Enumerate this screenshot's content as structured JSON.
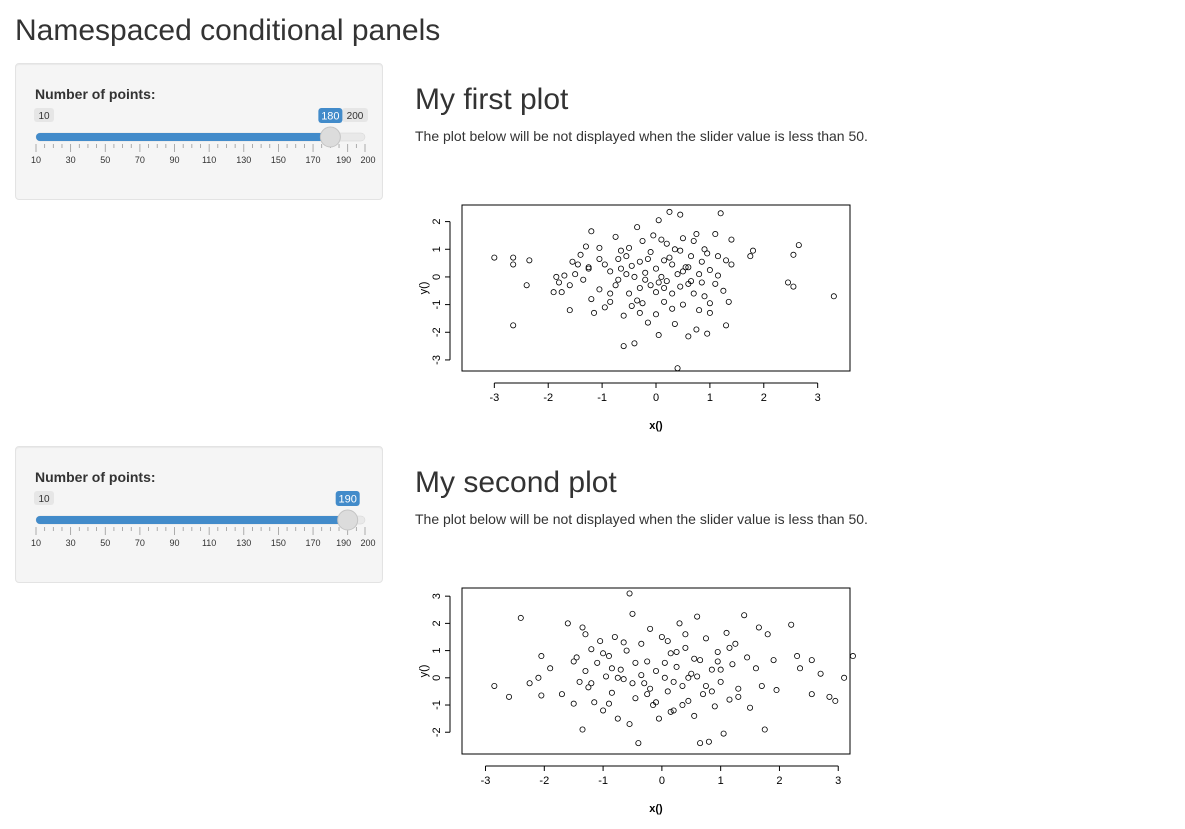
{
  "page": {
    "title": "Namespaced conditional panels"
  },
  "panels": [
    {
      "slider": {
        "label": "Number of points:",
        "min": 10,
        "max": 200,
        "value": 180,
        "min_label": "10",
        "max_label": "200",
        "value_label": "180"
      },
      "main": {
        "title": "My first plot",
        "description": "The plot below will be not displayed when the slider value is less than 50."
      }
    },
    {
      "slider": {
        "label": "Number of points:",
        "min": 10,
        "max": 200,
        "value": 190,
        "min_label": "10",
        "max_label": "200",
        "value_label": "190"
      },
      "main": {
        "title": "My second plot",
        "description": "The plot below will be not displayed when the slider value is less than 50."
      }
    }
  ],
  "slider_ticks": [
    "10",
    "30",
    "50",
    "70",
    "90",
    "110",
    "130",
    "150",
    "170",
    "190",
    "200"
  ],
  "colors": {
    "accent": "#428bca",
    "badge_bg": "#e6e6e6",
    "text": "#333333",
    "well_bg": "#f5f5f5"
  },
  "chart_data": [
    {
      "type": "scatter",
      "xlabel": "x()",
      "ylabel": "y()",
      "xlim": [
        -3.6,
        3.6
      ],
      "ylim": [
        -3.4,
        2.6
      ],
      "xticks": [
        "-3",
        "-2",
        "-1",
        "0",
        "1",
        "2",
        "3"
      ],
      "yticks": [
        "-3",
        "-2",
        "-1",
        "0",
        "1",
        "2"
      ],
      "points": [
        [
          -3.0,
          0.7
        ],
        [
          -2.65,
          0.7
        ],
        [
          -2.65,
          0.45
        ],
        [
          -2.35,
          0.6
        ],
        [
          -2.4,
          -0.3
        ],
        [
          -2.65,
          -1.75
        ],
        [
          -1.9,
          -0.55
        ],
        [
          -1.85,
          0.0
        ],
        [
          -1.8,
          -0.2
        ],
        [
          -1.75,
          -0.55
        ],
        [
          -1.7,
          0.05
        ],
        [
          -1.6,
          -0.3
        ],
        [
          -1.55,
          0.55
        ],
        [
          -1.5,
          0.1
        ],
        [
          -1.4,
          0.8
        ],
        [
          -1.35,
          -0.1
        ],
        [
          -1.3,
          1.1
        ],
        [
          -1.25,
          0.35
        ],
        [
          -1.2,
          1.65
        ],
        [
          -1.2,
          -0.8
        ],
        [
          -1.15,
          -1.3
        ],
        [
          -1.05,
          1.05
        ],
        [
          -1.05,
          -0.45
        ],
        [
          -0.95,
          0.45
        ],
        [
          -0.95,
          -1.1
        ],
        [
          -0.85,
          0.2
        ],
        [
          -0.85,
          -0.9
        ],
        [
          -0.75,
          1.45
        ],
        [
          -0.7,
          0.65
        ],
        [
          -0.7,
          -0.1
        ],
        [
          -0.65,
          0.3
        ],
        [
          -0.6,
          -1.4
        ],
        [
          -0.6,
          -2.5
        ],
        [
          -0.55,
          0.75
        ],
        [
          -0.5,
          1.05
        ],
        [
          -0.5,
          -0.6
        ],
        [
          -0.45,
          0.4
        ],
        [
          -0.45,
          -1.05
        ],
        [
          -0.4,
          0.0
        ],
        [
          -0.4,
          -2.4
        ],
        [
          -0.35,
          1.8
        ],
        [
          -0.3,
          0.55
        ],
        [
          -0.3,
          -0.4
        ],
        [
          -0.25,
          1.3
        ],
        [
          -0.25,
          -0.95
        ],
        [
          -0.2,
          0.15
        ],
        [
          -0.15,
          -1.65
        ],
        [
          -0.1,
          0.9
        ],
        [
          -0.1,
          -0.3
        ],
        [
          -0.05,
          1.5
        ],
        [
          0.0,
          0.3
        ],
        [
          0.0,
          -0.55
        ],
        [
          0.0,
          -1.35
        ],
        [
          0.05,
          2.05
        ],
        [
          0.05,
          -2.1
        ],
        [
          0.1,
          0.0
        ],
        [
          0.15,
          0.6
        ],
        [
          0.15,
          -0.9
        ],
        [
          0.2,
          1.2
        ],
        [
          0.2,
          -0.15
        ],
        [
          0.25,
          2.35
        ],
        [
          0.3,
          0.45
        ],
        [
          0.3,
          -0.6
        ],
        [
          0.35,
          -1.7
        ],
        [
          0.35,
          1.0
        ],
        [
          0.4,
          0.1
        ],
        [
          0.4,
          -3.3
        ],
        [
          0.45,
          2.25
        ],
        [
          0.45,
          -0.35
        ],
        [
          0.5,
          1.4
        ],
        [
          0.5,
          -1.0
        ],
        [
          0.55,
          0.35
        ],
        [
          0.6,
          -2.15
        ],
        [
          0.6,
          -0.25
        ],
        [
          0.65,
          0.75
        ],
        [
          0.7,
          -0.6
        ],
        [
          0.7,
          1.3
        ],
        [
          0.75,
          -1.9
        ],
        [
          0.8,
          0.1
        ],
        [
          0.8,
          -1.2
        ],
        [
          0.85,
          0.55
        ],
        [
          0.9,
          -0.7
        ],
        [
          0.9,
          1.0
        ],
        [
          0.95,
          -2.05
        ],
        [
          1.0,
          0.25
        ],
        [
          1.0,
          -1.3
        ],
        [
          1.1,
          1.55
        ],
        [
          1.1,
          -0.25
        ],
        [
          1.15,
          0.75
        ],
        [
          1.2,
          2.3
        ],
        [
          1.25,
          -0.5
        ],
        [
          1.3,
          0.6
        ],
        [
          1.3,
          -1.75
        ],
        [
          1.35,
          -0.9
        ],
        [
          1.4,
          1.35
        ],
        [
          1.4,
          0.45
        ],
        [
          1.75,
          0.75
        ],
        [
          1.8,
          0.95
        ],
        [
          2.55,
          0.8
        ],
        [
          2.65,
          1.15
        ],
        [
          2.55,
          -0.35
        ],
        [
          2.45,
          -0.2
        ],
        [
          3.3,
          -0.7
        ],
        [
          -1.25,
          0.3
        ],
        [
          -0.85,
          -0.6
        ],
        [
          -0.65,
          0.95
        ],
        [
          -0.2,
          -0.1
        ],
        [
          0.25,
          0.7
        ],
        [
          0.6,
          0.35
        ],
        [
          0.85,
          -0.2
        ],
        [
          1.0,
          -0.95
        ],
        [
          -1.6,
          -1.2
        ],
        [
          -0.35,
          -0.85
        ],
        [
          0.15,
          -0.4
        ],
        [
          0.5,
          0.2
        ],
        [
          -0.55,
          0.1
        ],
        [
          0.75,
          1.55
        ],
        [
          -1.05,
          0.65
        ],
        [
          0.1,
          1.35
        ],
        [
          0.65,
          -0.15
        ],
        [
          -0.15,
          0.65
        ],
        [
          1.15,
          0.05
        ],
        [
          -0.75,
          -0.3
        ],
        [
          0.3,
          -1.15
        ],
        [
          0.95,
          0.85
        ],
        [
          -1.45,
          0.45
        ],
        [
          0.45,
          0.95
        ],
        [
          -0.3,
          -1.3
        ],
        [
          0.05,
          -0.2
        ]
      ]
    },
    {
      "type": "scatter",
      "xlabel": "x()",
      "ylabel": "y()",
      "xlim": [
        -3.4,
        3.2
      ],
      "ylim": [
        -2.8,
        3.3
      ],
      "xticks": [
        "-3",
        "-2",
        "-1",
        "0",
        "1",
        "2",
        "3"
      ],
      "yticks": [
        "-2",
        "-1",
        "0",
        "1",
        "2",
        "3"
      ],
      "points": [
        [
          -2.85,
          -0.3
        ],
        [
          -2.6,
          -0.7
        ],
        [
          -2.4,
          2.2
        ],
        [
          -2.25,
          -0.2
        ],
        [
          -2.1,
          0.0
        ],
        [
          -2.05,
          0.8
        ],
        [
          -2.05,
          -0.65
        ],
        [
          -1.9,
          0.35
        ],
        [
          -1.7,
          -0.6
        ],
        [
          -1.6,
          2.0
        ],
        [
          -1.5,
          -0.95
        ],
        [
          -1.45,
          0.75
        ],
        [
          -1.4,
          -0.15
        ],
        [
          -1.35,
          1.85
        ],
        [
          -1.35,
          -1.9
        ],
        [
          -1.3,
          0.25
        ],
        [
          -1.3,
          1.6
        ],
        [
          -1.25,
          -0.35
        ],
        [
          -1.2,
          1.05
        ],
        [
          -1.15,
          -0.9
        ],
        [
          -1.1,
          0.55
        ],
        [
          -1.05,
          1.35
        ],
        [
          -1.0,
          -1.2
        ],
        [
          -0.95,
          0.05
        ],
        [
          -0.9,
          0.8
        ],
        [
          -0.85,
          -0.55
        ],
        [
          -0.8,
          1.5
        ],
        [
          -0.75,
          -1.5
        ],
        [
          -0.7,
          0.3
        ],
        [
          -0.65,
          -0.05
        ],
        [
          -0.6,
          1.0
        ],
        [
          -0.55,
          -1.7
        ],
        [
          -0.5,
          2.35
        ],
        [
          -0.45,
          0.55
        ],
        [
          -0.45,
          -0.75
        ],
        [
          -0.4,
          -2.4
        ],
        [
          -0.35,
          1.25
        ],
        [
          -0.3,
          -0.2
        ],
        [
          -0.25,
          0.6
        ],
        [
          -0.2,
          1.8
        ],
        [
          -0.15,
          -1.0
        ],
        [
          -0.1,
          0.25
        ],
        [
          -0.05,
          -1.5
        ],
        [
          0.0,
          1.5
        ],
        [
          0.05,
          0.0
        ],
        [
          0.1,
          -0.5
        ],
        [
          0.15,
          0.9
        ],
        [
          0.2,
          -1.2
        ],
        [
          0.25,
          0.4
        ],
        [
          0.3,
          2.0
        ],
        [
          0.35,
          -0.3
        ],
        [
          0.4,
          1.1
        ],
        [
          0.45,
          -0.85
        ],
        [
          0.5,
          0.15
        ],
        [
          0.55,
          -1.4
        ],
        [
          0.6,
          2.25
        ],
        [
          0.65,
          0.65
        ],
        [
          0.7,
          -0.6
        ],
        [
          0.75,
          1.45
        ],
        [
          0.8,
          -2.35
        ],
        [
          0.85,
          0.3
        ],
        [
          0.9,
          -1.05
        ],
        [
          0.95,
          0.95
        ],
        [
          1.0,
          -0.15
        ],
        [
          1.05,
          -2.05
        ],
        [
          1.1,
          1.65
        ],
        [
          1.15,
          -0.8
        ],
        [
          1.2,
          0.5
        ],
        [
          1.25,
          1.25
        ],
        [
          1.3,
          -0.4
        ],
        [
          1.4,
          2.3
        ],
        [
          1.45,
          0.75
        ],
        [
          1.5,
          -1.1
        ],
        [
          1.65,
          1.85
        ],
        [
          1.75,
          -1.9
        ],
        [
          1.8,
          1.6
        ],
        [
          1.9,
          0.65
        ],
        [
          1.95,
          -0.45
        ],
        [
          2.2,
          1.95
        ],
        [
          2.3,
          0.8
        ],
        [
          2.35,
          0.35
        ],
        [
          2.55,
          0.65
        ],
        [
          2.55,
          -0.6
        ],
        [
          2.7,
          0.15
        ],
        [
          2.85,
          -0.7
        ],
        [
          2.95,
          -0.85
        ],
        [
          3.25,
          0.8
        ],
        [
          3.1,
          0.0
        ],
        [
          -0.55,
          3.1
        ],
        [
          0.65,
          -2.4
        ],
        [
          0.25,
          0.95
        ],
        [
          -0.25,
          -0.6
        ],
        [
          0.45,
          0.0
        ],
        [
          -0.85,
          0.35
        ],
        [
          0.75,
          -0.3
        ],
        [
          0.1,
          1.35
        ],
        [
          -0.1,
          -0.9
        ],
        [
          1.0,
          0.3
        ],
        [
          -1.2,
          -0.2
        ],
        [
          0.55,
          0.7
        ],
        [
          -0.65,
          1.3
        ],
        [
          0.35,
          -1.0
        ],
        [
          1.3,
          -0.7
        ],
        [
          -0.35,
          0.1
        ],
        [
          0.05,
          0.55
        ],
        [
          -0.9,
          -0.95
        ],
        [
          1.15,
          1.1
        ],
        [
          -1.5,
          0.6
        ],
        [
          0.85,
          -0.5
        ],
        [
          -0.2,
          -0.4
        ],
        [
          0.6,
          0.05
        ],
        [
          1.6,
          0.35
        ],
        [
          -1.0,
          0.9
        ],
        [
          0.2,
          -0.15
        ],
        [
          -0.5,
          -0.2
        ],
        [
          0.95,
          0.6
        ],
        [
          -0.75,
          0.0
        ],
        [
          0.4,
          1.6
        ],
        [
          0.15,
          -1.25
        ],
        [
          1.7,
          -0.3
        ]
      ]
    }
  ]
}
